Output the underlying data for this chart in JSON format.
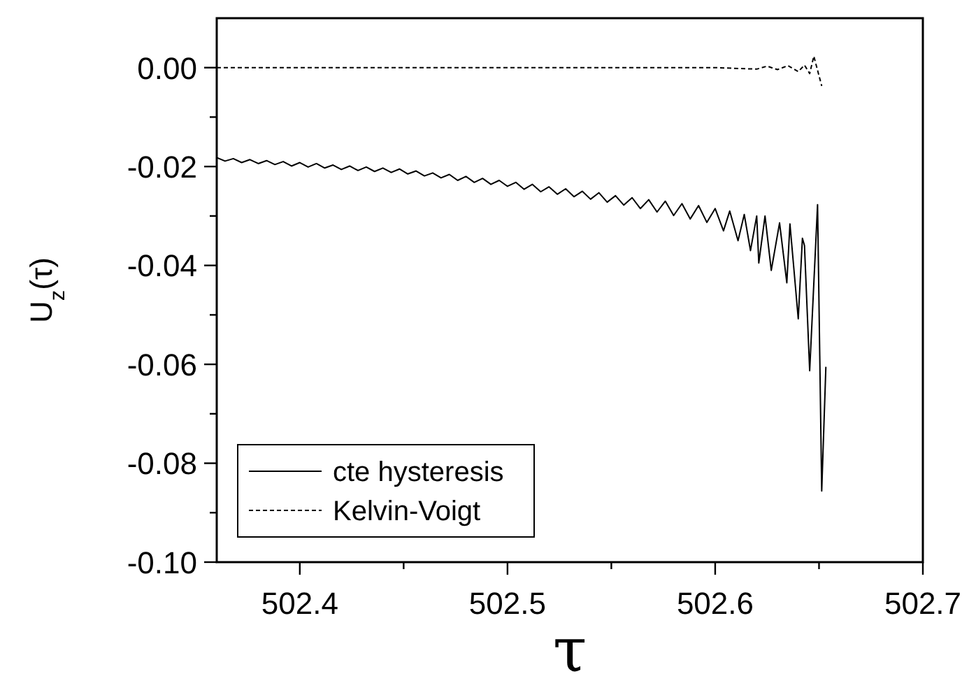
{
  "chart_data": {
    "type": "line",
    "xlabel": "τ",
    "ylabel": "U$_{z}$(τ)",
    "xlim": [
      502.36,
      502.7
    ],
    "ylim": [
      -0.1,
      0.01
    ],
    "xticks": [
      502.4,
      {
        "value": 502.45,
        "label": null
      },
      502.5,
      {
        "value": 502.55,
        "label": null
      },
      502.6,
      {
        "value": 502.65,
        "label": null
      },
      502.7
    ],
    "yticks": [
      {
        "value": -0.1,
        "label": "-0.10"
      },
      {
        "value": -0.09,
        "label": null
      },
      {
        "value": -0.08,
        "label": "-0.08"
      },
      {
        "value": -0.07,
        "label": null
      },
      {
        "value": -0.06,
        "label": "-0.06"
      },
      {
        "value": -0.05,
        "label": null
      },
      {
        "value": -0.04,
        "label": "-0.04"
      },
      {
        "value": -0.03,
        "label": null
      },
      {
        "value": -0.02,
        "label": "-0.02"
      },
      {
        "value": -0.01,
        "label": null
      },
      {
        "value": 0,
        "label": "0.00"
      }
    ],
    "grid": false,
    "legend": "bottom left",
    "series": [
      {
        "name": "cte hysteresis",
        "color": "#000000",
        "line_style": "solid",
        "x": [
          502.36,
          502.364,
          502.368,
          502.372,
          502.376,
          502.38,
          502.384,
          502.388,
          502.392,
          502.396,
          502.4,
          502.404,
          502.408,
          502.412,
          502.416,
          502.42,
          502.424,
          502.428,
          502.432,
          502.436,
          502.44,
          502.444,
          502.448,
          502.452,
          502.456,
          502.46,
          502.464,
          502.468,
          502.472,
          502.476,
          502.48,
          502.484,
          502.488,
          502.492,
          502.496,
          502.5,
          502.504,
          502.508,
          502.512,
          502.516,
          502.52,
          502.524,
          502.528,
          502.532,
          502.536,
          502.54,
          502.544,
          502.548,
          502.552,
          502.556,
          502.56,
          502.564,
          502.568,
          502.572,
          502.576,
          502.58,
          502.584,
          502.588,
          502.592,
          502.596,
          502.6,
          502.604,
          502.607,
          502.611,
          502.614,
          502.617,
          502.62,
          502.621,
          502.624,
          502.627,
          502.631,
          502.6345,
          502.636,
          502.64,
          502.642,
          502.643,
          502.6455,
          502.6493,
          502.6513,
          502.6533
        ],
        "values": [
          -0.0182,
          -0.0189,
          -0.0184,
          -0.0192,
          -0.0186,
          -0.0194,
          -0.0188,
          -0.0196,
          -0.019,
          -0.0199,
          -0.0192,
          -0.0201,
          -0.0194,
          -0.0203,
          -0.0197,
          -0.0206,
          -0.0199,
          -0.0208,
          -0.0201,
          -0.021,
          -0.0203,
          -0.0212,
          -0.0205,
          -0.0215,
          -0.0209,
          -0.0219,
          -0.0213,
          -0.0223,
          -0.0216,
          -0.0228,
          -0.022,
          -0.0232,
          -0.0224,
          -0.0236,
          -0.0228,
          -0.024,
          -0.0232,
          -0.0246,
          -0.0236,
          -0.0251,
          -0.0241,
          -0.0256,
          -0.0245,
          -0.0261,
          -0.025,
          -0.0266,
          -0.0253,
          -0.0272,
          -0.0259,
          -0.0278,
          -0.0263,
          -0.0285,
          -0.0267,
          -0.0292,
          -0.027,
          -0.0299,
          -0.0275,
          -0.0306,
          -0.0279,
          -0.0313,
          -0.0285,
          -0.033,
          -0.029,
          -0.035,
          -0.0297,
          -0.037,
          -0.03,
          -0.0395,
          -0.03,
          -0.041,
          -0.0314,
          -0.0435,
          -0.0316,
          -0.0508,
          -0.0345,
          -0.036,
          -0.0613,
          -0.0277,
          -0.0856,
          -0.0605
        ]
      },
      {
        "name": "Kelvin-Voigt",
        "color": "#000000",
        "line_style": "dashed",
        "x": [
          502.36,
          502.6,
          502.62,
          502.625,
          502.63,
          502.635,
          502.64,
          502.643,
          502.6455,
          502.6475,
          502.6513
        ],
        "values": [
          0,
          0,
          -0.0003,
          0.0003,
          -0.0004,
          0.0004,
          -0.0008,
          0.0005,
          -0.0012,
          0.0023,
          -0.0037
        ]
      }
    ]
  }
}
